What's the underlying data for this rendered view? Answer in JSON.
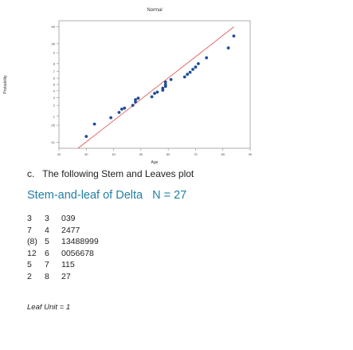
{
  "chart_data": {
    "type": "scatter",
    "title": "Normal",
    "xlabel": "Age",
    "ylabel": "Probability",
    "xlim": [
      20,
      90
    ],
    "x_ticks": [
      "20",
      "30",
      "40",
      "50",
      "60",
      "70",
      "80",
      "90"
    ],
    "y_ticks": [
      "0.01",
      "0.05",
      "0.1",
      "0.2",
      "0.3",
      "0.4",
      "0.5",
      "0.6",
      "0.7",
      "0.8",
      "0.9",
      "0.95",
      "0.99"
    ],
    "y_tick_labels": [
      ".01",
      ".05",
      ".1",
      ".2",
      ".3",
      ".4",
      ".5",
      ".6",
      ".7",
      ".8",
      ".9",
      ".95",
      ".99"
    ],
    "points": [
      {
        "x": 30,
        "y": 0.018
      },
      {
        "x": 33,
        "y": 0.055
      },
      {
        "x": 39,
        "y": 0.09
      },
      {
        "x": 42,
        "y": 0.13
      },
      {
        "x": 43,
        "y": 0.16
      },
      {
        "x": 44,
        "y": 0.17
      },
      {
        "x": 47,
        "y": 0.2
      },
      {
        "x": 48,
        "y": 0.24
      },
      {
        "x": 48,
        "y": 0.27
      },
      {
        "x": 49,
        "y": 0.29
      },
      {
        "x": 54,
        "y": 0.31
      },
      {
        "x": 55,
        "y": 0.36
      },
      {
        "x": 56,
        "y": 0.38
      },
      {
        "x": 58,
        "y": 0.41
      },
      {
        "x": 58,
        "y": 0.44
      },
      {
        "x": 59,
        "y": 0.47
      },
      {
        "x": 59,
        "y": 0.5
      },
      {
        "x": 59,
        "y": 0.54
      },
      {
        "x": 61,
        "y": 0.58
      },
      {
        "x": 66,
        "y": 0.62
      },
      {
        "x": 67,
        "y": 0.66
      },
      {
        "x": 68,
        "y": 0.69
      },
      {
        "x": 69,
        "y": 0.73
      },
      {
        "x": 70,
        "y": 0.76
      },
      {
        "x": 71,
        "y": 0.8
      },
      {
        "x": 74,
        "y": 0.86
      },
      {
        "x": 82,
        "y": 0.93
      },
      {
        "x": 84,
        "y": 0.975
      }
    ],
    "fit_line": {
      "x": [
        27,
        84
      ],
      "y": [
        0.005,
        0.99
      ]
    },
    "point_color": "#1f4e99",
    "line_color": "#e05050",
    "grid": false
  },
  "caption": {
    "number": "c.",
    "text": "The following Stem and Leaves plot"
  },
  "stem_leaf": {
    "title": "Stem-and-leaf of Delta",
    "n_label": "N = 27",
    "title_color": "#1f7fa6",
    "rows": [
      {
        "depth": "3",
        "stem": "3",
        "leaves": "039"
      },
      {
        "depth": "7",
        "stem": "4",
        "leaves": "2477"
      },
      {
        "depth": "(8)",
        "stem": "5",
        "leaves": "13488999"
      },
      {
        "depth": "12",
        "stem": "6",
        "leaves": "0056678"
      },
      {
        "depth": "5",
        "stem": "7",
        "leaves": "115"
      },
      {
        "depth": "2",
        "stem": "8",
        "leaves": "27"
      }
    ],
    "leaf_unit": "Leaf Unit = 1"
  }
}
